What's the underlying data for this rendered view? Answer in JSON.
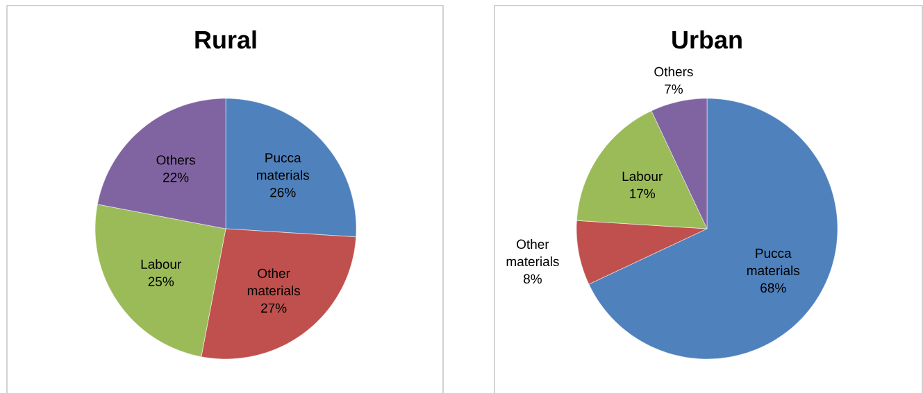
{
  "chart_data": [
    {
      "type": "pie",
      "title": "Rural",
      "categories": [
        "Pucca materials",
        "Other materials",
        "Labour",
        "Others"
      ],
      "values": [
        26,
        27,
        25,
        22
      ],
      "value_labels": [
        "26%",
        "27%",
        "25%",
        "22%"
      ],
      "colors": [
        "#4f81bd",
        "#c0504d",
        "#9bbb59",
        "#8064a2"
      ]
    },
    {
      "type": "pie",
      "title": "Urban",
      "categories": [
        "Pucca materials",
        "Other materials",
        "Labour",
        "Others"
      ],
      "values": [
        68,
        8,
        17,
        7
      ],
      "value_labels": [
        "68%",
        "8%",
        "17%",
        "7%"
      ],
      "colors": [
        "#4f81bd",
        "#c0504d",
        "#9bbb59",
        "#8064a2"
      ]
    }
  ]
}
